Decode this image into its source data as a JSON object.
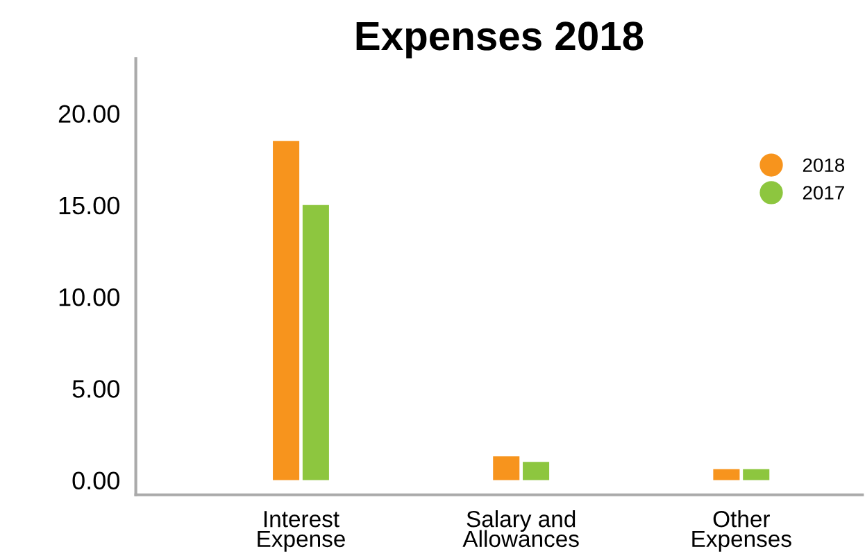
{
  "chart_data": {
    "type": "bar",
    "title": "Expenses 2018",
    "categories": [
      "Interest\nExpense",
      "Salary and\nAllowances",
      "Other\nExpenses"
    ],
    "series": [
      {
        "name": "2018",
        "color": "#f7941d",
        "values": [
          18.5,
          1.3,
          0.6
        ]
      },
      {
        "name": "2017",
        "color": "#8dc63f",
        "values": [
          15.0,
          1.0,
          0.6
        ]
      }
    ],
    "ylim": [
      -0.8,
      23
    ],
    "yticks": [
      {
        "value": 0,
        "label": "0.00"
      },
      {
        "value": 5,
        "label": "5.00"
      },
      {
        "value": 10,
        "label": "10.00"
      },
      {
        "value": 15,
        "label": "15.00"
      },
      {
        "value": 20,
        "label": "20.00"
      }
    ],
    "grid": false,
    "legend": "right"
  }
}
